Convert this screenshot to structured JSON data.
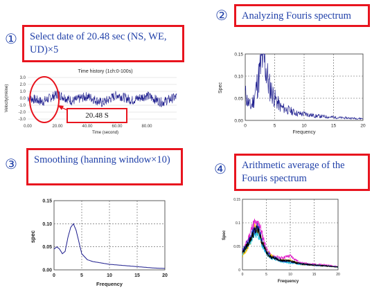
{
  "steps": [
    {
      "number": "①",
      "text": "Select date of 20.48  sec (NS, WE, UD)×5"
    },
    {
      "number": "②",
      "text": "Analyzing Fouris spectrum"
    },
    {
      "number": "③",
      "text": "Smoothing (hanning window×10)"
    },
    {
      "number": "④",
      "text": "Arithmetic average of the Fouris spectrum"
    }
  ],
  "callout_label": "20.48 S",
  "colors": {
    "accent_red": "#e8141e",
    "text_blue": "#1f3fa8",
    "trace_navy": "#1a1a8c"
  },
  "chart_data": [
    {
      "type": "line",
      "title": "Time history (1ch:0-100s)",
      "xlabel": "Time (second)",
      "ylabel": "Velocity(mkine)",
      "x_tick_labels": [
        "0.00",
        "20.00",
        "40.00",
        "60.00",
        "80.00"
      ],
      "y_tick_labels": [
        "3.0",
        "2.0",
        "1.0",
        "0.0",
        "-1.0",
        "-2.0",
        "-3.0"
      ],
      "xlim": [
        0,
        100
      ],
      "ylim": [
        -3,
        3
      ],
      "series": [
        {
          "x": [
            0,
            10,
            20,
            30,
            40,
            50,
            60,
            70,
            80,
            90,
            100
          ],
          "values": [
            0.1,
            -0.5,
            0.6,
            -0.4,
            0.3,
            -0.7,
            0.5,
            -0.3,
            0.4,
            -0.6,
            0.2
          ]
        }
      ],
      "highlight_window": [
        10,
        30.48
      ]
    },
    {
      "type": "line",
      "xlabel": "Frequency",
      "ylabel": "Spec",
      "x_tick_labels": [
        "0",
        "5",
        "10",
        "15",
        "20"
      ],
      "y_tick_labels": [
        "0.15",
        "0.10",
        "0.05",
        "0.00"
      ],
      "xlim": [
        0,
        20
      ],
      "ylim": [
        0,
        0.15
      ],
      "series": [
        {
          "x": [
            0,
            0.5,
            1,
            1.5,
            2,
            2.5,
            3,
            3.5,
            4,
            5,
            6,
            7,
            8,
            9,
            10,
            12,
            14,
            16,
            18,
            20
          ],
          "values": [
            0.06,
            0.04,
            0.03,
            0.05,
            0.08,
            0.11,
            0.15,
            0.12,
            0.08,
            0.05,
            0.03,
            0.025,
            0.02,
            0.015,
            0.015,
            0.01,
            0.008,
            0.006,
            0.005,
            0.004
          ]
        }
      ]
    },
    {
      "type": "line",
      "xlabel": "Frequency",
      "ylabel": "spec",
      "x_tick_labels": [
        "0",
        "5",
        "10",
        "15",
        "20"
      ],
      "y_tick_labels": [
        "0.15",
        "0.10",
        "0.05",
        "0.00"
      ],
      "xlim": [
        0,
        20
      ],
      "ylim": [
        0,
        0.15
      ],
      "series": [
        {
          "x": [
            0,
            0.5,
            1,
            1.5,
            2,
            2.5,
            3,
            3.5,
            4,
            4.5,
            5,
            6,
            7,
            8,
            9,
            10,
            12,
            14,
            16,
            18,
            20
          ],
          "values": [
            0.045,
            0.05,
            0.045,
            0.035,
            0.04,
            0.07,
            0.092,
            0.1,
            0.085,
            0.06,
            0.035,
            0.022,
            0.018,
            0.016,
            0.014,
            0.012,
            0.01,
            0.008,
            0.006,
            0.004,
            0.003
          ]
        }
      ]
    },
    {
      "type": "line",
      "xlabel": "Frequency",
      "ylabel": "Spec",
      "x_tick_labels": [
        "0",
        "5",
        "10",
        "15",
        "20"
      ],
      "y_tick_labels": [
        "0.15",
        "0.1",
        "0.05",
        "0"
      ],
      "xlim": [
        0,
        20
      ],
      "ylim": [
        0,
        0.15
      ],
      "series": [
        {
          "color": "#e020c8",
          "x": [
            0,
            1,
            2,
            2.5,
            3,
            3.5,
            4,
            5,
            6,
            8,
            10,
            12,
            15,
            18,
            20
          ],
          "values": [
            0.04,
            0.06,
            0.09,
            0.1,
            0.095,
            0.1,
            0.08,
            0.045,
            0.03,
            0.025,
            0.03,
            0.015,
            0.012,
            0.01,
            0.007
          ]
        },
        {
          "color": "#f0c000",
          "x": [
            0,
            1,
            2,
            2.5,
            3,
            3.5,
            4,
            5,
            6,
            8,
            10,
            12,
            15,
            18,
            20
          ],
          "values": [
            0.03,
            0.045,
            0.07,
            0.09,
            0.085,
            0.08,
            0.06,
            0.04,
            0.03,
            0.02,
            0.02,
            0.012,
            0.01,
            0.008,
            0.006
          ]
        },
        {
          "color": "#20c0e0",
          "x": [
            0,
            1,
            2,
            2.5,
            3,
            3.5,
            4,
            5,
            6,
            8,
            10,
            12,
            15,
            18,
            20
          ],
          "values": [
            0.035,
            0.05,
            0.065,
            0.075,
            0.08,
            0.07,
            0.055,
            0.035,
            0.025,
            0.018,
            0.015,
            0.012,
            0.01,
            0.008,
            0.006
          ]
        },
        {
          "color": "#2030c0",
          "x": [
            0,
            1,
            2,
            2.5,
            3,
            3.5,
            4,
            5,
            6,
            8,
            10,
            12,
            15,
            18,
            20
          ],
          "values": [
            0.04,
            0.055,
            0.075,
            0.085,
            0.09,
            0.085,
            0.065,
            0.04,
            0.028,
            0.02,
            0.018,
            0.013,
            0.01,
            0.008,
            0.006
          ]
        },
        {
          "color": "#000000",
          "x": [
            0,
            1,
            2,
            2.5,
            3,
            3.5,
            4,
            5,
            6,
            8,
            10,
            12,
            15,
            18,
            20
          ],
          "values": [
            0.037,
            0.052,
            0.072,
            0.082,
            0.085,
            0.08,
            0.062,
            0.038,
            0.027,
            0.02,
            0.019,
            0.013,
            0.01,
            0.008,
            0.006
          ]
        }
      ]
    }
  ]
}
